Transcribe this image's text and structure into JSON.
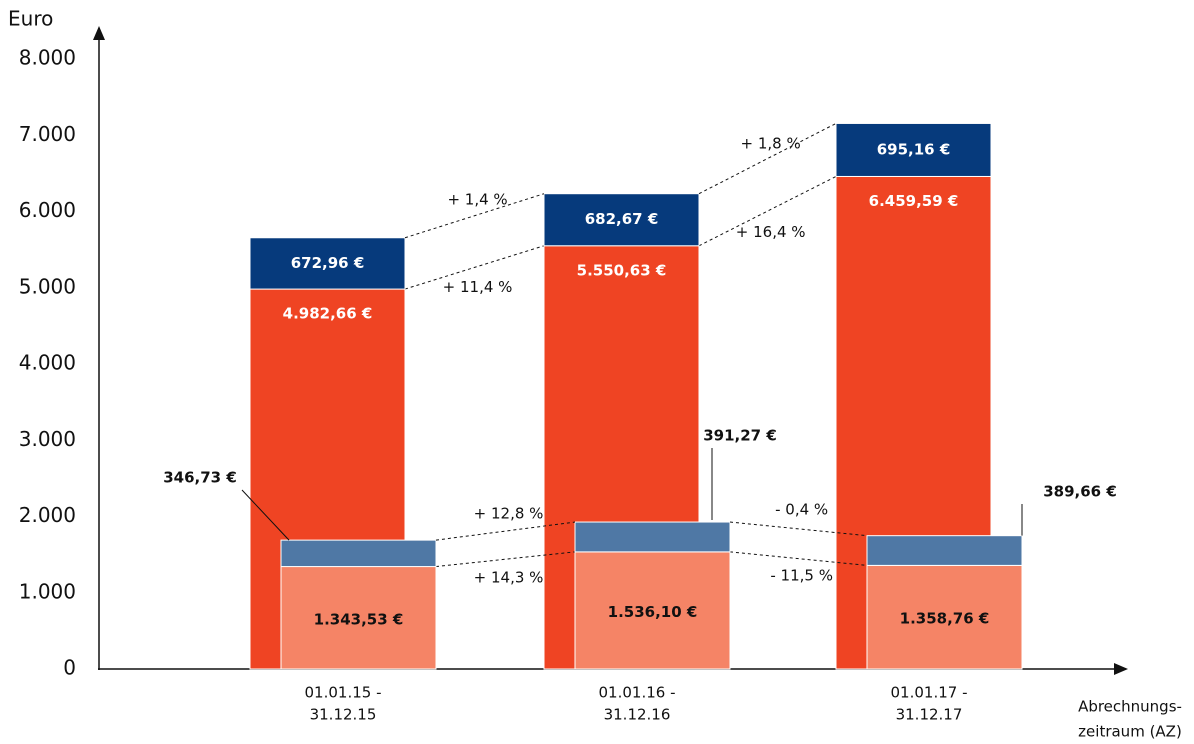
{
  "chart_data": {
    "type": "bar",
    "y_label": "Euro",
    "x_label": [
      "Abrechnungs-",
      "zeitraum (AZ)"
    ],
    "categories": [
      [
        "01.01.15 -",
        "31.12.15"
      ],
      [
        "01.01.16 -",
        "31.12.16"
      ],
      [
        "01.01.17 -",
        "31.12.17"
      ]
    ],
    "ylim": [
      0,
      8000
    ],
    "yticks": [
      {
        "value": 0,
        "label": "0"
      },
      {
        "value": 1000,
        "label": "1.000"
      },
      {
        "value": 2000,
        "label": "2.000"
      },
      {
        "value": 3000,
        "label": "3.000"
      },
      {
        "value": 4000,
        "label": "4.000"
      },
      {
        "value": 5000,
        "label": "5.000"
      },
      {
        "value": 6000,
        "label": "6.000"
      },
      {
        "value": 7000,
        "label": "7.000"
      },
      {
        "value": 8000,
        "label": "8.000"
      }
    ],
    "series": [
      {
        "color": "#ef4423",
        "values": [
          4982.66,
          5550.63,
          6459.59
        ],
        "value_labels": [
          "4.982,66 €",
          "5.550,63 €",
          "6.459,59 €"
        ],
        "changes": [
          "+ 11,4 %",
          "+ 16,4 %"
        ]
      },
      {
        "color": "#063a7c",
        "values": [
          672.96,
          682.67,
          695.16
        ],
        "value_labels": [
          "672,96 €",
          "682,67 €",
          "695,16 €"
        ],
        "changes": [
          "+ 1,4 %",
          "+ 1,8 %"
        ]
      },
      {
        "color": "#f58466",
        "values": [
          1343.53,
          1536.1,
          1358.76
        ],
        "value_labels": [
          "1.343,53 €",
          "1.536,10 €",
          "1.358,76 €"
        ],
        "changes": [
          "+ 14,3 %",
          "- 11,5 %"
        ]
      },
      {
        "color": "#4f78a5",
        "values": [
          346.73,
          391.27,
          389.66
        ],
        "value_labels": [
          "346,73 €",
          "391,27 €",
          "389,66 €"
        ],
        "changes": [
          "+ 12,8 %",
          "- 0,4 %"
        ]
      }
    ]
  }
}
